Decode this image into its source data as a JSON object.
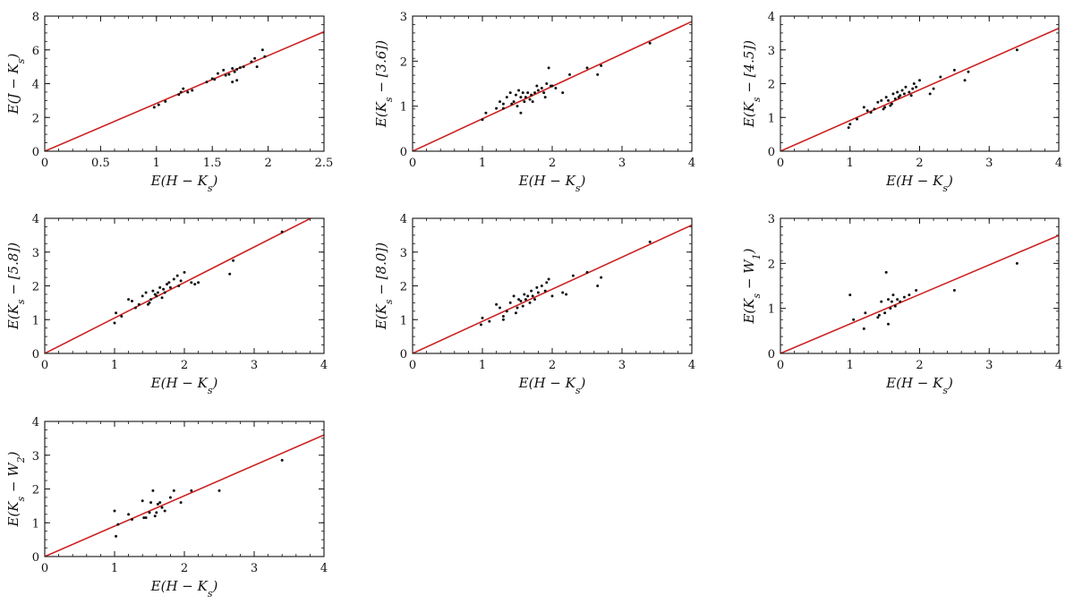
{
  "figure": {
    "panels": [
      {
        "xlabel": "E(H − K_s)",
        "ylabel": "E(J − K_s)"
      },
      {
        "xlabel": "E(H − K_s)",
        "ylabel": "E(K_s − [3.6])"
      },
      {
        "xlabel": "E(H − K_s)",
        "ylabel": "E(K_s − [4.5])"
      },
      {
        "xlabel": "E(H − K_s)",
        "ylabel": "E(K_s − [5.8])"
      },
      {
        "xlabel": "E(H − K_s)",
        "ylabel": "E(K_s − [8.0])"
      },
      {
        "xlabel": "E(H − K_s)",
        "ylabel": "E(K_s − W_1)"
      },
      {
        "xlabel": "E(H − K_s)",
        "ylabel": "E(K_s − W_2)"
      }
    ]
  },
  "chart_data": [
    {
      "type": "scatter",
      "title": "",
      "xlabel": "E(H − K_s)",
      "ylabel": "E(J − K_s)",
      "xlim": [
        0,
        2.5
      ],
      "ylim": [
        0,
        8
      ],
      "xticks": [
        0,
        0.5,
        1,
        1.5,
        2,
        2.5
      ],
      "yticks": [
        0,
        2,
        4,
        6,
        8
      ],
      "fit_line": {
        "slope": 2.83,
        "intercept": 0,
        "color": "#cc2222"
      },
      "points": {
        "x": [
          0.98,
          1.02,
          1.08,
          1.2,
          1.22,
          1.24,
          1.28,
          1.32,
          1.45,
          1.5,
          1.52,
          1.55,
          1.6,
          1.62,
          1.65,
          1.68,
          1.7,
          1.72,
          1.75,
          1.78,
          1.85,
          1.88,
          1.9,
          1.95,
          1.97,
          1.68,
          1.72
        ],
        "y": [
          2.6,
          2.75,
          2.95,
          3.35,
          3.5,
          3.7,
          3.5,
          3.6,
          4.1,
          4.3,
          4.25,
          4.6,
          4.8,
          4.5,
          4.55,
          4.9,
          4.7,
          4.85,
          4.95,
          5.0,
          5.3,
          5.5,
          5.0,
          6.0,
          5.6,
          4.1,
          4.2
        ]
      },
      "point_color": "#111111"
    },
    {
      "type": "scatter",
      "title": "",
      "xlabel": "E(H − K_s)",
      "ylabel": "E(K_s − [3.6])",
      "xlim": [
        0,
        4
      ],
      "ylim": [
        0,
        3
      ],
      "xticks": [
        0,
        1,
        2,
        3,
        4
      ],
      "yticks": [
        0,
        1,
        2,
        3
      ],
      "fit_line": {
        "slope": 0.72,
        "intercept": 0,
        "color": "#cc2222"
      },
      "points": {
        "x": [
          1.0,
          1.05,
          1.2,
          1.25,
          1.3,
          1.35,
          1.4,
          1.45,
          1.48,
          1.5,
          1.52,
          1.55,
          1.58,
          1.6,
          1.62,
          1.65,
          1.68,
          1.7,
          1.72,
          1.75,
          1.78,
          1.8,
          1.85,
          1.9,
          1.92,
          1.95,
          2.0,
          2.05,
          2.15,
          2.25,
          2.5,
          2.65,
          2.7,
          3.4,
          1.55,
          1.3,
          1.42,
          1.88,
          1.98
        ],
        "y": [
          0.7,
          0.85,
          0.95,
          1.1,
          1.05,
          1.2,
          1.3,
          1.1,
          1.25,
          1.0,
          1.35,
          1.2,
          1.3,
          1.1,
          1.2,
          1.3,
          1.15,
          1.25,
          1.1,
          1.3,
          1.45,
          1.35,
          1.4,
          1.2,
          1.5,
          1.85,
          1.45,
          1.4,
          1.3,
          1.7,
          1.85,
          1.7,
          1.9,
          2.4,
          0.85,
          0.95,
          1.05,
          1.3,
          1.45
        ]
      },
      "point_color": "#111111"
    },
    {
      "type": "scatter",
      "title": "",
      "xlabel": "E(H − K_s)",
      "ylabel": "E(K_s − [4.5])",
      "xlim": [
        0,
        4
      ],
      "ylim": [
        0,
        4
      ],
      "xticks": [
        0,
        1,
        2,
        3,
        4
      ],
      "yticks": [
        0,
        1,
        2,
        3,
        4
      ],
      "fit_line": {
        "slope": 0.91,
        "intercept": 0,
        "color": "#cc2222"
      },
      "points": {
        "x": [
          0.98,
          1.0,
          1.1,
          1.2,
          1.25,
          1.3,
          1.35,
          1.4,
          1.45,
          1.5,
          1.52,
          1.55,
          1.6,
          1.62,
          1.65,
          1.68,
          1.7,
          1.72,
          1.75,
          1.78,
          1.8,
          1.85,
          1.88,
          1.9,
          1.92,
          1.95,
          2.0,
          2.15,
          2.2,
          2.3,
          2.5,
          2.65,
          2.7,
          3.4,
          1.58,
          1.48
        ],
        "y": [
          0.7,
          0.8,
          0.95,
          1.3,
          1.2,
          1.15,
          1.25,
          1.45,
          1.5,
          1.3,
          1.6,
          1.5,
          1.4,
          1.7,
          1.55,
          1.75,
          1.6,
          1.65,
          1.8,
          1.7,
          1.9,
          1.75,
          1.65,
          1.85,
          2.0,
          1.9,
          2.1,
          1.7,
          1.85,
          2.2,
          2.4,
          2.1,
          2.35,
          3.0,
          1.35,
          1.25
        ]
      },
      "point_color": "#111111"
    },
    {
      "type": "scatter",
      "title": "",
      "xlabel": "E(H − K_s)",
      "ylabel": "E(K_s − [5.8])",
      "xlim": [
        0,
        4
      ],
      "ylim": [
        0,
        4
      ],
      "xticks": [
        0,
        1,
        2,
        3,
        4
      ],
      "yticks": [
        0,
        1,
        2,
        3,
        4
      ],
      "fit_line": {
        "slope": 1.05,
        "intercept": 0,
        "color": "#cc2222"
      },
      "points": {
        "x": [
          1.0,
          1.02,
          1.1,
          1.2,
          1.25,
          1.3,
          1.35,
          1.4,
          1.45,
          1.5,
          1.52,
          1.55,
          1.58,
          1.6,
          1.62,
          1.65,
          1.68,
          1.7,
          1.72,
          1.75,
          1.78,
          1.8,
          1.85,
          1.9,
          1.92,
          1.95,
          2.0,
          2.1,
          2.15,
          2.2,
          2.65,
          2.7,
          3.4,
          1.48
        ],
        "y": [
          0.9,
          1.2,
          1.1,
          1.6,
          1.55,
          1.35,
          1.45,
          1.7,
          1.8,
          1.5,
          1.6,
          1.85,
          1.75,
          1.7,
          1.8,
          1.95,
          1.65,
          1.9,
          1.8,
          2.05,
          2.1,
          1.95,
          2.2,
          2.3,
          2.0,
          2.15,
          2.4,
          2.1,
          2.05,
          2.1,
          2.35,
          2.75,
          3.6,
          1.45
        ]
      },
      "point_color": "#111111"
    },
    {
      "type": "scatter",
      "title": "",
      "xlabel": "E(H − K_s)",
      "ylabel": "E(K_s − [8.0])",
      "xlim": [
        0,
        4
      ],
      "ylim": [
        0,
        4
      ],
      "xticks": [
        0,
        1,
        2,
        3,
        4
      ],
      "yticks": [
        0,
        1,
        2,
        3,
        4
      ],
      "fit_line": {
        "slope": 0.95,
        "intercept": 0,
        "color": "#cc2222"
      },
      "points": {
        "x": [
          0.98,
          1.0,
          1.1,
          1.2,
          1.25,
          1.3,
          1.35,
          1.4,
          1.45,
          1.5,
          1.52,
          1.55,
          1.58,
          1.6,
          1.62,
          1.65,
          1.68,
          1.7,
          1.72,
          1.75,
          1.78,
          1.8,
          1.85,
          1.9,
          1.92,
          1.95,
          2.0,
          2.15,
          2.2,
          2.3,
          2.5,
          2.65,
          2.7,
          3.4,
          1.48,
          1.3
        ],
        "y": [
          0.85,
          1.05,
          0.95,
          1.45,
          1.35,
          1.1,
          1.25,
          1.5,
          1.7,
          1.35,
          1.6,
          1.55,
          1.4,
          1.75,
          1.6,
          1.7,
          1.5,
          1.85,
          1.7,
          1.6,
          1.95,
          1.8,
          2.0,
          1.85,
          2.1,
          2.2,
          1.7,
          1.8,
          1.75,
          2.3,
          2.4,
          2.0,
          2.25,
          3.3,
          1.2,
          1.0
        ]
      },
      "point_color": "#111111"
    },
    {
      "type": "scatter",
      "title": "",
      "xlabel": "E(H − K_s)",
      "ylabel": "E(K_s − W_1)",
      "xlim": [
        0,
        4
      ],
      "ylim": [
        0,
        3
      ],
      "xticks": [
        0,
        1,
        2,
        3,
        4
      ],
      "yticks": [
        0,
        1,
        2,
        3
      ],
      "fit_line": {
        "slope": 0.655,
        "intercept": 0,
        "color": "#cc2222"
      },
      "points": {
        "x": [
          1.0,
          1.05,
          1.2,
          1.22,
          1.4,
          1.45,
          1.5,
          1.52,
          1.55,
          1.58,
          1.6,
          1.62,
          1.65,
          1.68,
          1.72,
          1.78,
          1.85,
          1.95,
          2.5,
          3.4,
          1.42,
          1.55
        ],
        "y": [
          1.3,
          0.75,
          0.55,
          0.9,
          0.8,
          1.15,
          0.9,
          1.8,
          1.2,
          1.0,
          1.15,
          1.3,
          1.05,
          1.2,
          1.15,
          1.25,
          1.3,
          1.4,
          1.4,
          2.0,
          0.85,
          0.65
        ]
      },
      "point_color": "#111111"
    },
    {
      "type": "scatter",
      "title": "",
      "xlabel": "E(H − K_s)",
      "ylabel": "E(K_s − W_2)",
      "xlim": [
        0,
        4
      ],
      "ylim": [
        0,
        4
      ],
      "xticks": [
        0,
        1,
        2,
        3,
        4
      ],
      "yticks": [
        0,
        1,
        2,
        3,
        4
      ],
      "fit_line": {
        "slope": 0.9,
        "intercept": 0,
        "color": "#cc2222"
      },
      "points": {
        "x": [
          1.0,
          1.02,
          1.05,
          1.2,
          1.25,
          1.4,
          1.45,
          1.5,
          1.52,
          1.55,
          1.58,
          1.62,
          1.65,
          1.68,
          1.72,
          1.8,
          1.85,
          1.95,
          2.1,
          2.5,
          3.4,
          1.42,
          1.6
        ],
        "y": [
          1.35,
          0.6,
          0.95,
          1.25,
          1.1,
          1.65,
          1.15,
          1.3,
          1.6,
          1.95,
          1.2,
          1.55,
          1.6,
          1.45,
          1.35,
          1.75,
          1.95,
          1.6,
          1.95,
          1.95,
          2.85,
          1.15,
          1.3
        ]
      },
      "point_color": "#111111"
    }
  ]
}
